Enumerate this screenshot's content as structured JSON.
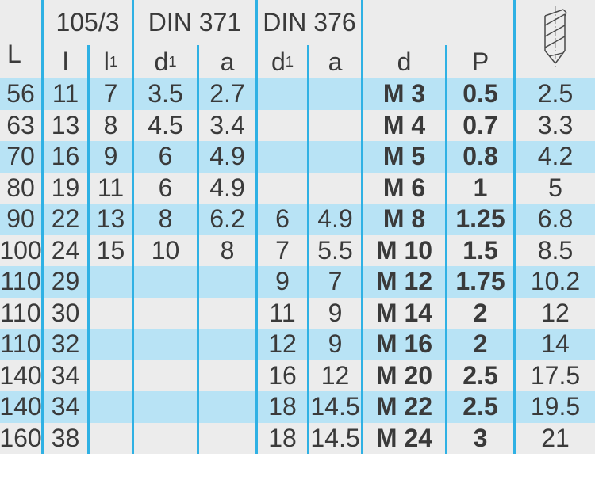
{
  "table": {
    "group_headers": {
      "series_105_3": "105/3",
      "din_371": "DIN 371",
      "din_376": "DIN 376"
    },
    "column_headers": [
      {
        "label": "L",
        "sub": ""
      },
      {
        "label": "l",
        "sub": ""
      },
      {
        "label": "l",
        "sub": "1"
      },
      {
        "label": "d",
        "sub": "1"
      },
      {
        "label": "a",
        "sub": ""
      },
      {
        "label": "d",
        "sub": "1"
      },
      {
        "label": "a",
        "sub": ""
      },
      {
        "label": "d",
        "sub": ""
      },
      {
        "label": "P",
        "sub": ""
      },
      {
        "label": "",
        "sub": ""
      }
    ],
    "header_icon": "drill-bit-icon",
    "rows": [
      [
        "56",
        "11",
        "7",
        "3.5",
        "2.7",
        "",
        "",
        "M 3",
        "0.5",
        "2.5"
      ],
      [
        "63",
        "13",
        "8",
        "4.5",
        "3.4",
        "",
        "",
        "M 4",
        "0.7",
        "3.3"
      ],
      [
        "70",
        "16",
        "9",
        "6",
        "4.9",
        "",
        "",
        "M 5",
        "0.8",
        "4.2"
      ],
      [
        "80",
        "19",
        "11",
        "6",
        "4.9",
        "",
        "",
        "M 6",
        "1",
        "5"
      ],
      [
        "90",
        "22",
        "13",
        "8",
        "6.2",
        "6",
        "4.9",
        "M 8",
        "1.25",
        "6.8"
      ],
      [
        "100",
        "24",
        "15",
        "10",
        "8",
        "7",
        "5.5",
        "M 10",
        "1.5",
        "8.5"
      ],
      [
        "110",
        "29",
        "",
        "",
        "",
        "9",
        "7",
        "M 12",
        "1.75",
        "10.2"
      ],
      [
        "110",
        "30",
        "",
        "",
        "",
        "11",
        "9",
        "M 14",
        "2",
        "12"
      ],
      [
        "110",
        "32",
        "",
        "",
        "",
        "12",
        "9",
        "M 16",
        "2",
        "14"
      ],
      [
        "140",
        "34",
        "",
        "",
        "",
        "16",
        "12",
        "M 20",
        "2.5",
        "17.5"
      ],
      [
        "140",
        "34",
        "",
        "",
        "",
        "18",
        "14.5",
        "M 22",
        "2.5",
        "19.5"
      ],
      [
        "160",
        "38",
        "",
        "",
        "",
        "18",
        "14.5",
        "M 24",
        "3",
        "21"
      ]
    ],
    "bold_columns": [
      7,
      8
    ],
    "colors": {
      "row_highlight": "#b8e3f5",
      "row_alt": "#ececec",
      "divider": "#2fb1e4",
      "text": "#3a3a3a"
    }
  }
}
